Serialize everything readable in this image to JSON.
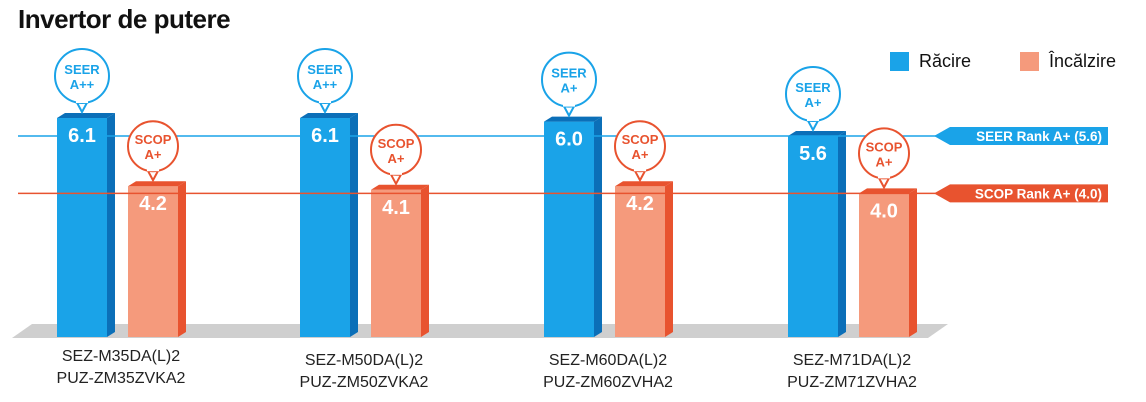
{
  "chart_data": {
    "type": "bar",
    "title": "Invertor de putere",
    "categories": [
      {
        "line1": "SEZ-M35DA(L)2",
        "line2": "PUZ-ZM35ZVKA2"
      },
      {
        "line1": "SEZ-M50DA(L)2",
        "line2": "PUZ-ZM50ZVKA2"
      },
      {
        "line1": "SEZ-M60DA(L)2",
        "line2": "PUZ-ZM60ZVHA2"
      },
      {
        "line1": "SEZ-M71DA(L)2",
        "line2": "PUZ-ZM71ZVHA2"
      }
    ],
    "series": [
      {
        "name": "Răcire",
        "metric": "SEER",
        "color": "#1aa3e8",
        "color_dark": "#0b6fb8",
        "values": [
          6.1,
          6.1,
          6.0,
          5.6
        ],
        "labels": [
          "6.1",
          "6.1",
          "6.0",
          "5.6"
        ],
        "badges": [
          "A++",
          "A++",
          "A+",
          "A+"
        ]
      },
      {
        "name": "Încălzire",
        "metric": "SCOP",
        "color": "#f59a7c",
        "color_dark": "#e8532f",
        "values": [
          4.2,
          4.1,
          4.2,
          4.0
        ],
        "labels": [
          "4.2",
          "4.1",
          "4.2",
          "4.0"
        ],
        "badges": [
          "A+",
          "A+",
          "A+",
          "A+"
        ]
      }
    ],
    "reference_lines": [
      {
        "label": "SEER Rank A+ (5.6)",
        "value": 5.6,
        "color": "#1aa3e8"
      },
      {
        "label": "SCOP Rank A+  (4.0)",
        "value": 4.0,
        "color": "#e8532f"
      }
    ],
    "legend": "top-right",
    "ylim": [
      0,
      6.6
    ]
  }
}
